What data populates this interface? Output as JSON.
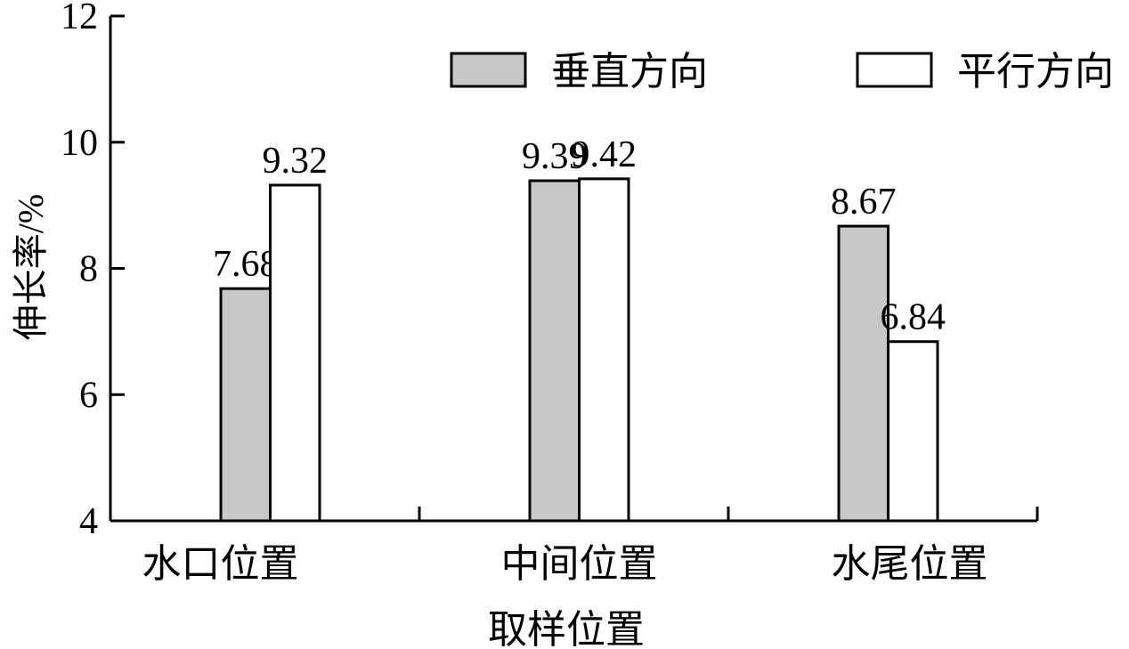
{
  "chart_data": {
    "type": "bar",
    "title": "",
    "xlabel": "取样位置",
    "ylabel": "伸长率/%",
    "ylim": [
      4,
      12
    ],
    "yticks": [
      4,
      6,
      8,
      10,
      12
    ],
    "grid": false,
    "legend_position": "top",
    "categories": [
      "水口位置",
      "中间位置",
      "水尾位置"
    ],
    "series": [
      {
        "name": "垂直方向",
        "values": [
          7.68,
          9.39,
          8.67
        ],
        "labels": [
          "7.68",
          "9.39",
          "8.67"
        ],
        "color": "#c8c8c8"
      },
      {
        "name": "平行方向",
        "values": [
          9.32,
          9.42,
          6.84
        ],
        "labels": [
          "9.32",
          "9.42",
          "6.84"
        ],
        "color": "#ffffff"
      }
    ]
  }
}
